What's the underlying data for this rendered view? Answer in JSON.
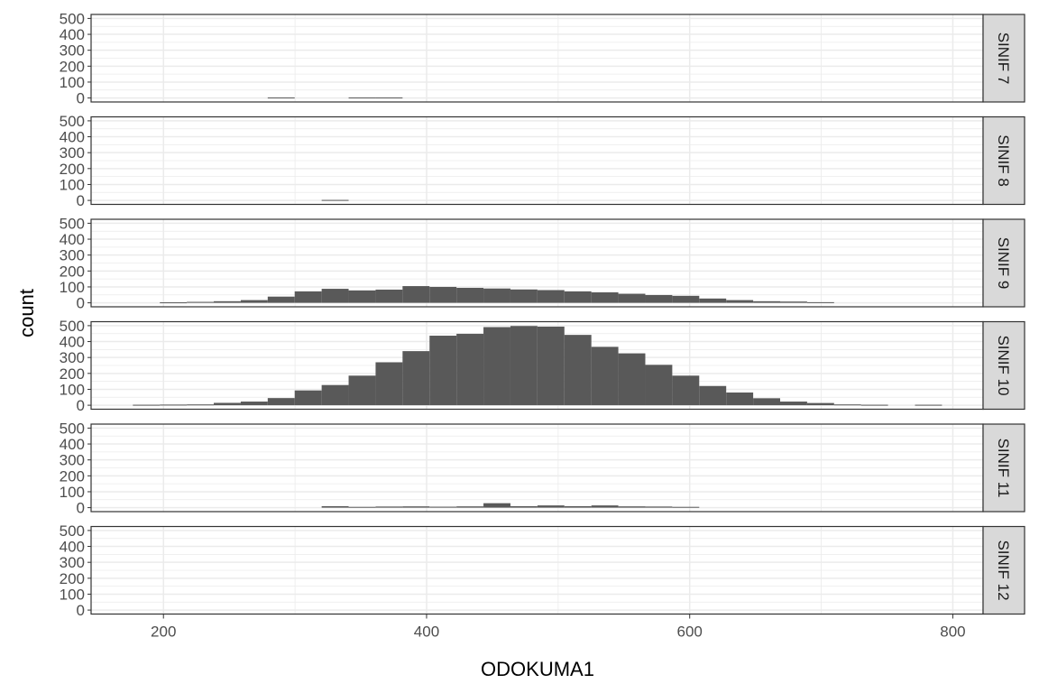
{
  "chart_data": {
    "type": "bar",
    "subtype": "faceted-histogram",
    "xlabel": "ODOKUMA1",
    "ylabel": "count",
    "xlim": [
      145,
      823
    ],
    "ylim": [
      -25,
      525
    ],
    "x_ticks": [
      200,
      400,
      600,
      800
    ],
    "y_ticks": [
      0,
      100,
      200,
      300,
      400,
      500
    ],
    "bin_width": 20.5,
    "grid": true,
    "colors": {
      "bar": "#595959",
      "strip_fill": "#d9d9d9",
      "grid": "#ebebeb",
      "border": "#333333"
    },
    "facets": [
      {
        "label": "SINIF 7",
        "bins": [
          {
            "x": 289.5,
            "count": 3
          },
          {
            "x": 351,
            "count": 3
          },
          {
            "x": 371.5,
            "count": 3
          }
        ]
      },
      {
        "label": "SINIF 8",
        "bins": [
          {
            "x": 330.5,
            "count": 3
          }
        ]
      },
      {
        "label": "SINIF 9",
        "bins": [
          {
            "x": 207.5,
            "count": 3
          },
          {
            "x": 228,
            "count": 6
          },
          {
            "x": 248.5,
            "count": 10
          },
          {
            "x": 269,
            "count": 17
          },
          {
            "x": 289.5,
            "count": 39
          },
          {
            "x": 310,
            "count": 72
          },
          {
            "x": 330.5,
            "count": 88
          },
          {
            "x": 351,
            "count": 78
          },
          {
            "x": 371.5,
            "count": 83
          },
          {
            "x": 392,
            "count": 105
          },
          {
            "x": 412.5,
            "count": 100
          },
          {
            "x": 433,
            "count": 94
          },
          {
            "x": 453.5,
            "count": 90
          },
          {
            "x": 474,
            "count": 84
          },
          {
            "x": 494.5,
            "count": 80
          },
          {
            "x": 515,
            "count": 72
          },
          {
            "x": 535.5,
            "count": 66
          },
          {
            "x": 556,
            "count": 57
          },
          {
            "x": 576.5,
            "count": 49
          },
          {
            "x": 597,
            "count": 44
          },
          {
            "x": 617.5,
            "count": 27
          },
          {
            "x": 638,
            "count": 17
          },
          {
            "x": 658.5,
            "count": 10
          },
          {
            "x": 679,
            "count": 8
          },
          {
            "x": 699.5,
            "count": 4
          }
        ]
      },
      {
        "label": "SINIF 10",
        "bins": [
          {
            "x": 187,
            "count": 3
          },
          {
            "x": 207.5,
            "count": 4
          },
          {
            "x": 228,
            "count": 5
          },
          {
            "x": 248.5,
            "count": 15
          },
          {
            "x": 269,
            "count": 23
          },
          {
            "x": 289.5,
            "count": 45
          },
          {
            "x": 310,
            "count": 93
          },
          {
            "x": 330.5,
            "count": 127
          },
          {
            "x": 351,
            "count": 186
          },
          {
            "x": 371.5,
            "count": 270
          },
          {
            "x": 392,
            "count": 340
          },
          {
            "x": 412.5,
            "count": 437
          },
          {
            "x": 433,
            "count": 449
          },
          {
            "x": 453.5,
            "count": 491
          },
          {
            "x": 474,
            "count": 498
          },
          {
            "x": 494.5,
            "count": 494
          },
          {
            "x": 515,
            "count": 442
          },
          {
            "x": 535.5,
            "count": 367
          },
          {
            "x": 556,
            "count": 326
          },
          {
            "x": 576.5,
            "count": 254
          },
          {
            "x": 597,
            "count": 186
          },
          {
            "x": 617.5,
            "count": 121
          },
          {
            "x": 638,
            "count": 80
          },
          {
            "x": 658.5,
            "count": 44
          },
          {
            "x": 679,
            "count": 23
          },
          {
            "x": 699.5,
            "count": 14
          },
          {
            "x": 720,
            "count": 5
          },
          {
            "x": 740.5,
            "count": 3
          },
          {
            "x": 781.5,
            "count": 3
          }
        ]
      },
      {
        "label": "SINIF 11",
        "bins": [
          {
            "x": 330.5,
            "count": 9
          },
          {
            "x": 351,
            "count": 5
          },
          {
            "x": 371.5,
            "count": 7
          },
          {
            "x": 392,
            "count": 8
          },
          {
            "x": 412.5,
            "count": 6
          },
          {
            "x": 433,
            "count": 8
          },
          {
            "x": 453.5,
            "count": 28
          },
          {
            "x": 474,
            "count": 9
          },
          {
            "x": 494.5,
            "count": 14
          },
          {
            "x": 515,
            "count": 9
          },
          {
            "x": 535.5,
            "count": 14
          },
          {
            "x": 556,
            "count": 8
          },
          {
            "x": 576.5,
            "count": 7
          },
          {
            "x": 597,
            "count": 5
          }
        ]
      },
      {
        "label": "SINIF 12",
        "bins": []
      }
    ]
  }
}
